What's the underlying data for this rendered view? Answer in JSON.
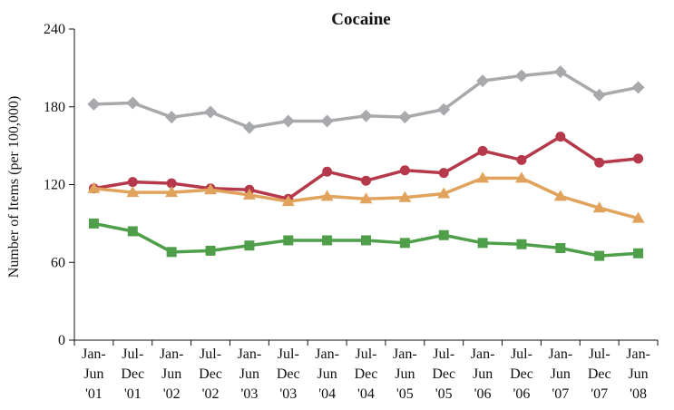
{
  "chart_data": {
    "type": "line",
    "title": "Cocaine",
    "xlabel": "",
    "ylabel": "Number of Items (per 100,000)",
    "ylim": [
      0,
      240
    ],
    "yticks": [
      "0",
      "60",
      "120",
      "180",
      "240"
    ],
    "grid": false,
    "categories": [
      [
        "Jan-",
        "Jun",
        "'01"
      ],
      [
        "Jul-",
        "Dec",
        "'01"
      ],
      [
        "Jan-",
        "Jun",
        "'02"
      ],
      [
        "Jul-",
        "Dec",
        "'02"
      ],
      [
        "Jan-",
        "Jun",
        "'03"
      ],
      [
        "Jul-",
        "Dec",
        "'03"
      ],
      [
        "Jan-",
        "Jun",
        "'04"
      ],
      [
        "Jul-",
        "Dec",
        "'04"
      ],
      [
        "Jan-",
        "Jun",
        "'05"
      ],
      [
        "Jul-",
        "Dec",
        "'05"
      ],
      [
        "Jan-",
        "Jun",
        "'06"
      ],
      [
        "Jul-",
        "Dec",
        "'06"
      ],
      [
        "Jan-",
        "Jun",
        "'07"
      ],
      [
        "Jul-",
        "Dec",
        "'07"
      ],
      [
        "Jan-",
        "Jun",
        "'08"
      ]
    ],
    "series": [
      {
        "color": "#a7a9ac",
        "marker": "diamond",
        "values": [
          182,
          183,
          172,
          176,
          164,
          169,
          169,
          173,
          172,
          178,
          200,
          204,
          207,
          189,
          195
        ]
      },
      {
        "color": "#b5394a",
        "marker": "circle",
        "values": [
          117,
          122,
          121,
          117,
          116,
          109,
          130,
          123,
          131,
          129,
          146,
          139,
          157,
          137,
          140
        ]
      },
      {
        "color": "#e1a35c",
        "marker": "triangle",
        "values": [
          117,
          114,
          114,
          116,
          112,
          107,
          111,
          109,
          110,
          113,
          125,
          125,
          111,
          102,
          94
        ]
      },
      {
        "color": "#4e9e4a",
        "marker": "square",
        "values": [
          90,
          84,
          68,
          69,
          73,
          77,
          77,
          77,
          75,
          81,
          75,
          74,
          71,
          65,
          67
        ]
      }
    ]
  }
}
